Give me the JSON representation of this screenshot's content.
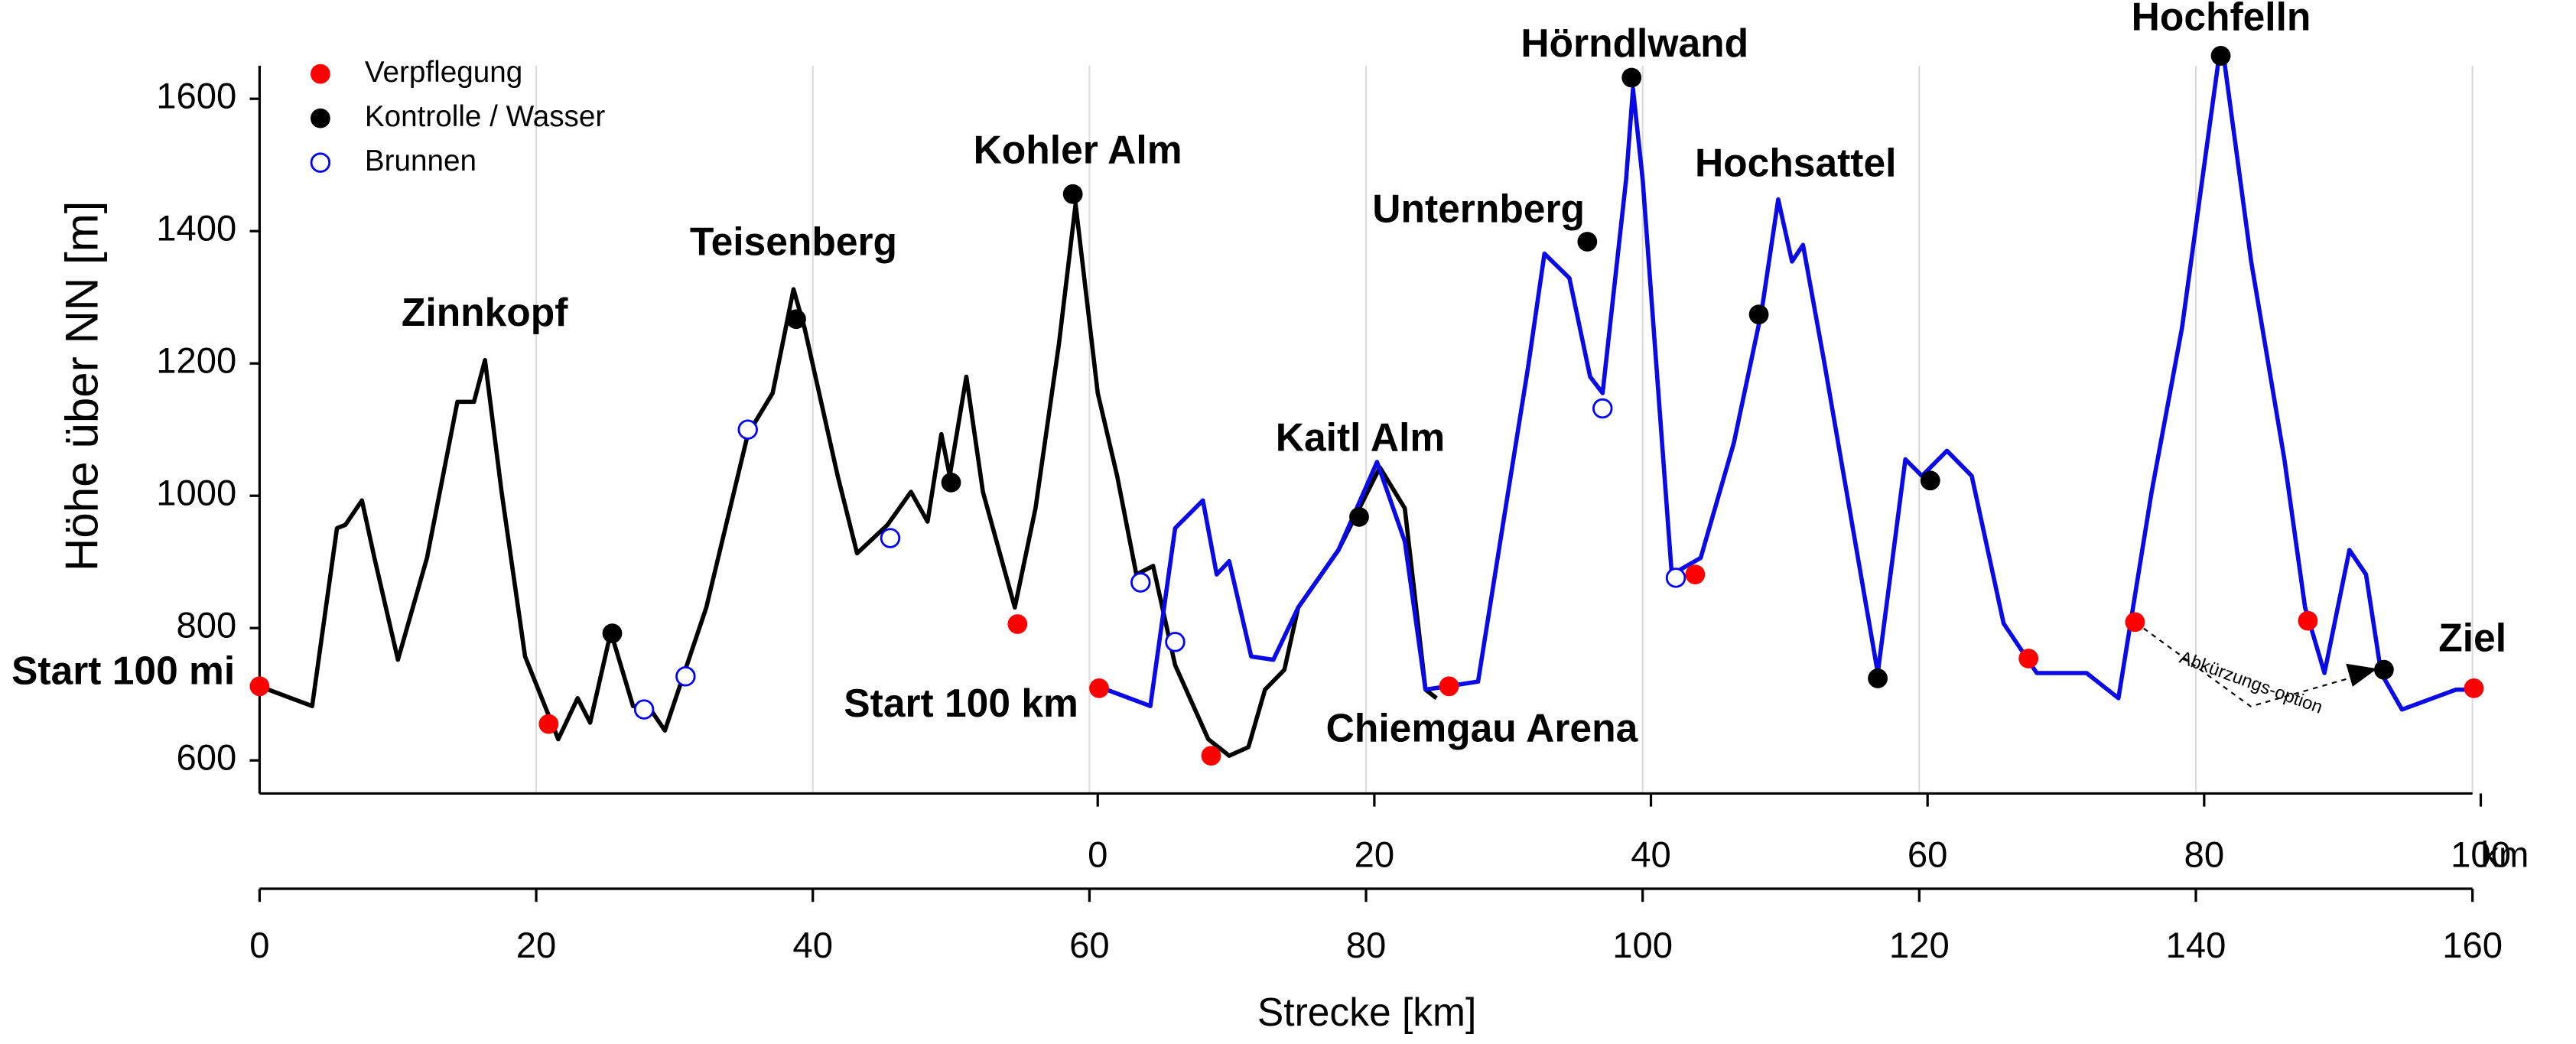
{
  "chart_data": {
    "type": "line",
    "xlabel": "Strecke [km]",
    "ylabel": "Höhe über NN [m]",
    "xlim": [
      0,
      160
    ],
    "xticks": [
      0,
      20,
      40,
      60,
      80,
      100,
      120,
      140,
      160
    ],
    "x2lim": [
      -60.6,
      99.4
    ],
    "x2ticks": [
      0,
      20,
      40,
      60,
      80,
      100
    ],
    "x2unit": "km",
    "ylim": [
      550,
      1650
    ],
    "yticks": [
      600,
      800,
      1000,
      1200,
      1400,
      1600
    ],
    "grid": true,
    "legend": "upper left",
    "series": [
      {
        "color": "#000000",
        "kind": "line",
        "x": [
          0,
          3.8,
          5.6,
          6.2,
          7.4,
          8.3,
          10,
          12.1,
          14.3,
          15.5,
          16.3,
          17.5,
          19.2,
          21.6,
          23,
          23.9,
          25.4,
          27,
          28.1,
          29.3,
          32.3,
          35.3,
          37.1,
          38.6,
          39.4,
          41.8,
          43.2,
          45.4,
          47.1,
          48.3,
          49.3,
          49.9,
          51.1,
          52.3,
          54.6,
          56.1,
          57.8,
          59,
          60.6,
          62,
          63.4,
          64.6,
          66.2,
          68.6,
          70.1,
          71.5,
          72.7,
          74.1,
          75.1,
          78,
          81,
          82.8,
          84.3,
          85.1
        ],
        "values": [
          712,
          682,
          951,
          956,
          993,
          906,
          752,
          906,
          1142,
          1142,
          1205,
          1006,
          757,
          632,
          694,
          657,
          794,
          682,
          682,
          645,
          831,
          1093,
          1155,
          1312,
          1254,
          1030,
          913,
          956,
          1006,
          961,
          1093,
          1030,
          1180,
          1006,
          831,
          981,
          1230,
          1441,
          1155,
          1030,
          881,
          894,
          744,
          632,
          607,
          620,
          707,
          737,
          831,
          918,
          1043,
          981,
          707,
          694
        ]
      },
      {
        "color": "#0a0ae6",
        "kind": "line",
        "x": [
          60.6,
          64.4,
          66.2,
          68.2,
          69.2,
          70.1,
          71.7,
          73.3,
          75.1,
          78,
          80.8,
          82.8,
          84.3,
          88.1,
          89.9,
          91.7,
          92.9,
          94.7,
          96.2,
          97.1,
          98.8,
          99.3,
          100,
          102.1,
          104.2,
          106.6,
          108.6,
          109.8,
          110.8,
          111.6,
          113.1,
          117,
          119,
          120.2,
          122,
          123.8,
          126.1,
          128.5,
          132.1,
          134.4,
          136.8,
          139,
          141.6,
          142,
          144,
          146.4,
          147.9,
          149.3,
          151.1,
          152.3,
          153.4,
          154.9,
          158.8,
          160
        ],
        "values": [
          712,
          682,
          951,
          993,
          881,
          901,
          757,
          752,
          831,
          918,
          1051,
          931,
          707,
          719,
          956,
          1192,
          1366,
          1329,
          1180,
          1155,
          1478,
          1615,
          1478,
          881,
          906,
          1080,
          1279,
          1448,
          1354,
          1379,
          1205,
          732,
          1055,
          1030,
          1068,
          1030,
          807,
          732,
          732,
          694,
          1006,
          1254,
          1652,
          1665,
          1354,
          1055,
          831,
          732,
          918,
          881,
          732,
          677,
          707,
          707
        ]
      },
      {
        "name": "Verpflegung",
        "color": "#ff0000",
        "kind": "filled",
        "x": [
          0,
          20.9,
          54.8,
          60.7,
          68.8,
          86,
          103.8,
          127.9,
          135.6,
          148.1,
          160.1
        ],
        "values": [
          712,
          655,
          806,
          709,
          607,
          712,
          881,
          754,
          809,
          811,
          709
        ]
      },
      {
        "name": "Kontrolle / Wasser",
        "color": "#000000",
        "kind": "filled",
        "x": [
          25.5,
          38.8,
          50,
          58.8,
          79.5,
          96,
          99.2,
          108.4,
          117,
          120.8,
          141.8,
          153.6
        ],
        "values": [
          792,
          1267,
          1020,
          1456,
          968,
          1384,
          1632,
          1274,
          724,
          1023,
          1665,
          737
        ]
      },
      {
        "name": "Brunnen",
        "color": "#0000ff",
        "kind": "open",
        "x": [
          27.8,
          30.8,
          35.3,
          45.6,
          63.7,
          66.2,
          97.1,
          102.4
        ],
        "values": [
          677,
          727,
          1100,
          936,
          869,
          779,
          1132,
          876
        ]
      }
    ],
    "annotations": [
      "Start 100 mi",
      "Zinnkopf",
      "Teisenberg",
      "Kohler Alm",
      "Start 100 km",
      "Kaitl Alm",
      "Chiemgau Arena",
      "Unternberg",
      "Hörndlwand",
      "Hochsattel",
      "Hochfelln",
      "Ziel",
      "Abkürzungs-option"
    ]
  }
}
